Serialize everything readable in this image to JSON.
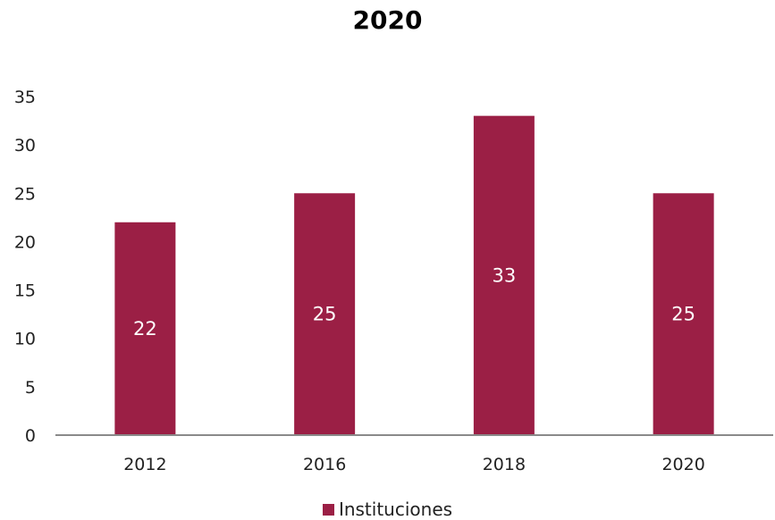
{
  "chart_data": {
    "type": "bar",
    "title": "2020",
    "categories": [
      "2012",
      "2016",
      "2018",
      "2020"
    ],
    "series": [
      {
        "name": "Instituciones",
        "values": [
          22,
          25,
          33,
          25
        ],
        "color": "#9b1f45"
      }
    ],
    "data_labels": [
      "22",
      "25",
      "33",
      "25"
    ],
    "ylim": [
      0,
      35
    ],
    "yticks": [
      0,
      5,
      10,
      15,
      20,
      25,
      30,
      35
    ],
    "grid": false,
    "legend_position": "bottom"
  }
}
